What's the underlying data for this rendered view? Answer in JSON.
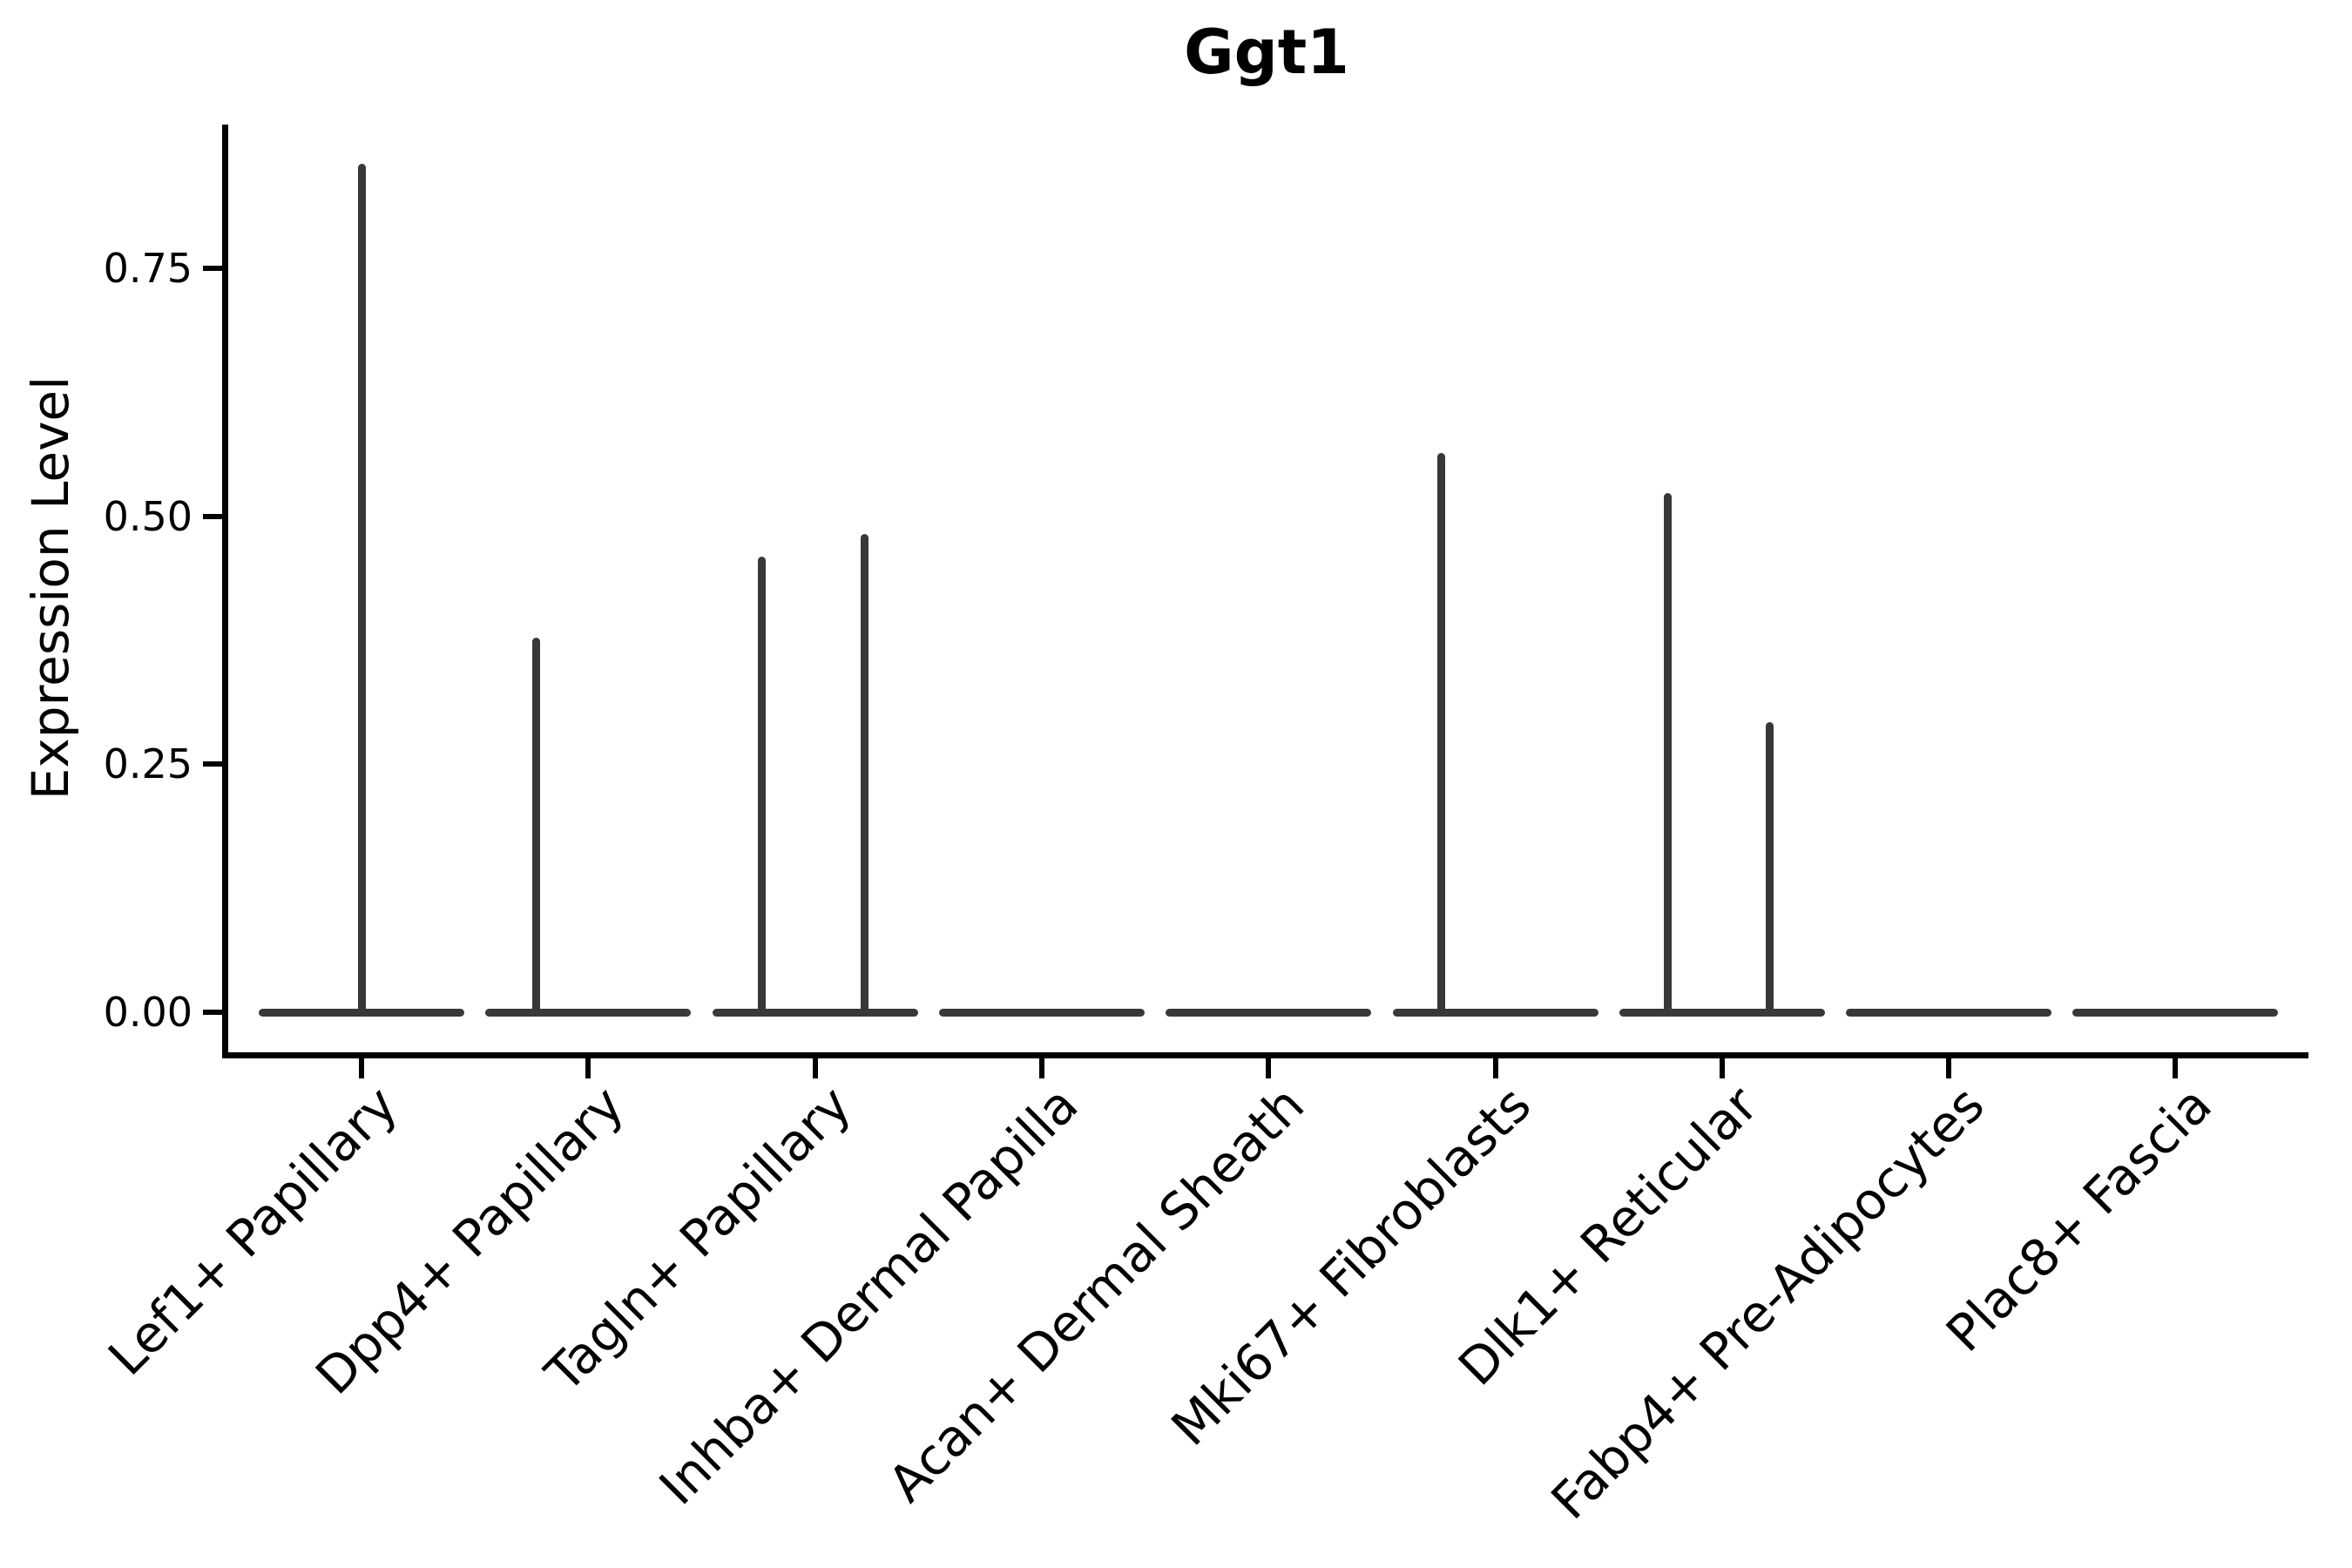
{
  "title": "Ggt1",
  "y_axis": {
    "label": "Expression Level",
    "tick_labels": [
      "0.00",
      "0.25",
      "0.50",
      "0.75"
    ]
  },
  "colors": {
    "violin": "#383838",
    "axis": "#000000",
    "text": "#000000",
    "background": "#ffffff"
  },
  "chart_data": {
    "type": "violin",
    "title": "Ggt1",
    "ylabel": "Expression Level",
    "xlabel": "",
    "ylim": [
      0,
      0.895
    ],
    "yticks": [
      0,
      0.25,
      0.5,
      0.75
    ],
    "ytick_labels": [
      "0.00",
      "0.25",
      "0.50",
      "0.75"
    ],
    "grid": false,
    "legend": "none",
    "x_label_rotation_deg": 45,
    "categories": [
      "Lef1+ Papillary",
      "Dpp4+ Papillary",
      "Tagln+ Papillary",
      "Inhba+ Dermal Papilla",
      "Acan+ Dermal Sheath",
      "Mki67+ Fibroblasts",
      "Dlk1+ Reticular",
      "Fabp4+ Pre-Adipocytes",
      "Plac8+ Fascia"
    ],
    "violins": [
      {
        "category": "Lef1+ Papillary",
        "zero_bulk": true,
        "spikes": [
          {
            "dx": 0.0,
            "max": 0.855
          }
        ]
      },
      {
        "category": "Dpp4+ Papillary",
        "zero_bulk": true,
        "spikes": [
          {
            "dx": -0.23,
            "max": 0.378
          }
        ]
      },
      {
        "category": "Tagln+ Papillary",
        "zero_bulk": true,
        "spikes": [
          {
            "dx": -0.235,
            "max": 0.459
          },
          {
            "dx": 0.22,
            "max": 0.482
          }
        ]
      },
      {
        "category": "Inhba+ Dermal Papilla",
        "zero_bulk": true,
        "spikes": []
      },
      {
        "category": "Acan+ Dermal Sheath",
        "zero_bulk": true,
        "spikes": []
      },
      {
        "category": "Mki67+ Fibroblasts",
        "zero_bulk": true,
        "spikes": [
          {
            "dx": -0.24,
            "max": 0.564
          }
        ]
      },
      {
        "category": "Dlk1+ Reticular",
        "zero_bulk": true,
        "spikes": [
          {
            "dx": -0.24,
            "max": 0.523
          },
          {
            "dx": 0.21,
            "max": 0.292
          }
        ]
      },
      {
        "category": "Fabp4+ Pre-Adipocytes",
        "zero_bulk": true,
        "spikes": []
      },
      {
        "category": "Plac8+ Fascia",
        "zero_bulk": true,
        "spikes": []
      }
    ]
  }
}
